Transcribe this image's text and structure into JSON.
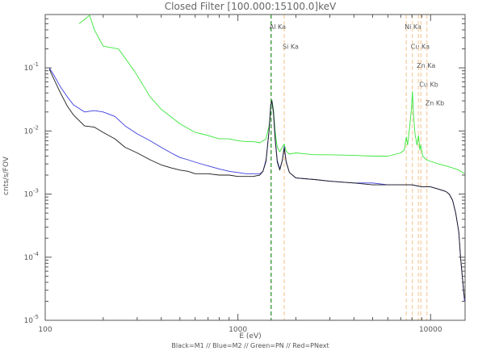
{
  "chart_data": {
    "type": "line",
    "title": "Closed Filter   [100.000:15100.0]keV",
    "xlabel": "E (eV)",
    "ylabel": "cnts/s/FOV",
    "caption": "Black=M1 // Blue=M2 // Green=PN // Red=PNext",
    "x_scale": "log",
    "y_scale": "log",
    "xlim": [
      100,
      15100
    ],
    "ylim": [
      1e-05,
      0.7
    ],
    "x_ticks": [
      {
        "value": 100,
        "label": "100"
      },
      {
        "value": 1000,
        "label": "1000"
      },
      {
        "value": 10000,
        "label": "10000"
      }
    ],
    "y_ticks": [
      {
        "value": 0.1,
        "exp": "-1"
      },
      {
        "value": 0.01,
        "exp": "-2"
      },
      {
        "value": 0.001,
        "exp": "-3"
      },
      {
        "value": 0.0001,
        "exp": "-4"
      },
      {
        "value": 1e-05,
        "exp": "-5"
      }
    ],
    "lines": [
      {
        "label": "Al Ka",
        "energy": 1487,
        "color": "#228b22",
        "style": "dash",
        "label_y": 0.45
      },
      {
        "label": "Si Ka",
        "energy": 1740,
        "color": "#f5c28a",
        "style": "dash",
        "label_y": 0.22
      },
      {
        "label": "Ni Ka",
        "energy": 7478,
        "color": "#f5c28a",
        "style": "dash",
        "label_y": 0.45
      },
      {
        "label": "Cu Ka",
        "energy": 8048,
        "color": "#f5c28a",
        "style": "dash",
        "label_y": 0.22
      },
      {
        "label": "Zn Ka",
        "energy": 8639,
        "color": "#f5c28a",
        "style": "dash",
        "label_y": 0.11
      },
      {
        "label": "Cu Kb",
        "energy": 8905,
        "color": "#f5c28a",
        "style": "dash",
        "label_y": 0.055
      },
      {
        "label": "Zn Kb",
        "energy": 9572,
        "color": "#f5c28a",
        "style": "dash",
        "label_y": 0.028
      }
    ],
    "series": [
      {
        "color": "#39e639",
        "x": [
          150,
          170,
          180,
          200,
          240,
          290,
          350,
          400,
          500,
          600,
          700,
          800,
          900,
          1000,
          1100,
          1200,
          1300,
          1400,
          1450,
          1480,
          1500,
          1530,
          1560,
          1600,
          1650,
          1700,
          1740,
          1780,
          1850,
          2000,
          2500,
          3000,
          4000,
          5000,
          6000,
          7000,
          7300,
          7480,
          7600,
          7800,
          7950,
          8050,
          8150,
          8300,
          8500,
          8650,
          8800,
          8900,
          9100,
          9500,
          10000,
          11000,
          12000,
          13000,
          14000,
          15000
        ],
        "y": [
          0.5,
          0.68,
          0.4,
          0.22,
          0.2,
          0.09,
          0.035,
          0.022,
          0.013,
          0.0095,
          0.0085,
          0.0075,
          0.0075,
          0.007,
          0.0068,
          0.0068,
          0.0065,
          0.0075,
          0.012,
          0.022,
          0.031,
          0.022,
          0.01,
          0.0055,
          0.0047,
          0.0055,
          0.0062,
          0.0048,
          0.0043,
          0.0045,
          0.0042,
          0.0042,
          0.0041,
          0.004,
          0.004,
          0.0045,
          0.005,
          0.008,
          0.006,
          0.012,
          0.022,
          0.042,
          0.018,
          0.009,
          0.006,
          0.0085,
          0.005,
          0.006,
          0.004,
          0.0035,
          0.0033,
          0.003,
          0.0028,
          0.0026,
          0.0024,
          0.0021
        ]
      },
      {
        "color": "#3a3adf",
        "x": [
          105,
          110,
          120,
          130,
          140,
          160,
          180,
          200,
          230,
          260,
          300,
          350,
          400,
          450,
          500,
          550,
          600,
          700,
          800,
          900,
          1000,
          1100,
          1200,
          1300,
          1350,
          1400,
          1450,
          1480,
          1500,
          1530,
          1560,
          1600,
          1650,
          1700,
          1740,
          1780,
          1850,
          2000,
          2500,
          3000,
          4000,
          5000,
          6000,
          7000,
          8000,
          9000,
          10000,
          11000,
          12000,
          12500,
          13000,
          13500,
          14000,
          14300,
          14600,
          15000
        ],
        "y": [
          0.1,
          0.08,
          0.05,
          0.035,
          0.026,
          0.02,
          0.021,
          0.02,
          0.017,
          0.012,
          0.009,
          0.007,
          0.0055,
          0.0045,
          0.0038,
          0.0035,
          0.0032,
          0.0028,
          0.0025,
          0.0023,
          0.0022,
          0.0021,
          0.0021,
          0.0021,
          0.0023,
          0.0035,
          0.01,
          0.025,
          0.03,
          0.02,
          0.008,
          0.0034,
          0.0025,
          0.0034,
          0.0057,
          0.0033,
          0.0022,
          0.0018,
          0.0017,
          0.0016,
          0.0015,
          0.0015,
          0.0014,
          0.0014,
          0.0014,
          0.0013,
          0.0013,
          0.0012,
          0.0011,
          0.001,
          0.0008,
          0.0005,
          0.00025,
          0.0001,
          5e-05,
          2e-05
        ]
      },
      {
        "color": "#1a1a1a",
        "x": [
          105,
          110,
          120,
          130,
          140,
          160,
          180,
          200,
          230,
          260,
          300,
          350,
          400,
          450,
          500,
          550,
          600,
          700,
          800,
          900,
          1000,
          1100,
          1200,
          1300,
          1350,
          1400,
          1450,
          1480,
          1500,
          1530,
          1560,
          1600,
          1650,
          1700,
          1740,
          1780,
          1850,
          2000,
          2500,
          3000,
          4000,
          5000,
          6000,
          7000,
          8000,
          9000,
          10000,
          11000,
          12000,
          12500,
          13000,
          13500,
          14000,
          14300,
          14600,
          15000
        ],
        "y": [
          0.095,
          0.07,
          0.04,
          0.025,
          0.018,
          0.012,
          0.0115,
          0.0095,
          0.0075,
          0.0055,
          0.0045,
          0.0035,
          0.0029,
          0.0026,
          0.0024,
          0.0023,
          0.0021,
          0.0021,
          0.002,
          0.002,
          0.0019,
          0.0019,
          0.0019,
          0.002,
          0.0023,
          0.0033,
          0.01,
          0.026,
          0.03,
          0.019,
          0.0075,
          0.0032,
          0.0024,
          0.0034,
          0.0054,
          0.0032,
          0.0022,
          0.0018,
          0.0017,
          0.0016,
          0.0015,
          0.0014,
          0.0014,
          0.0014,
          0.0014,
          0.0013,
          0.0013,
          0.0012,
          0.0011,
          0.001,
          0.0008,
          0.0005,
          0.00025,
          0.0001,
          5e-05,
          2.2e-05
        ]
      }
    ]
  }
}
